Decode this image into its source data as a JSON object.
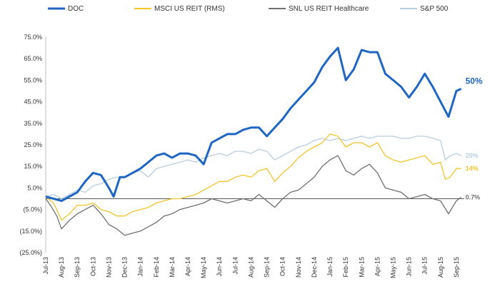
{
  "chart_data": {
    "type": "line",
    "title": "",
    "xlabel": "",
    "ylabel": "",
    "ylim": [
      -25,
      75
    ],
    "yticks": [
      75,
      65,
      55,
      45,
      35,
      25,
      15,
      5,
      -5,
      -15,
      -25
    ],
    "ytick_labels": [
      "75.0%",
      "65.0%",
      "55.0%",
      "45.0%",
      "35.0%",
      "25.0%",
      "15.0%",
      "5.0%",
      "(5.0%)",
      "(15.0%)",
      "(25.0%)"
    ],
    "xtick_labels": [
      "Jul-13",
      "Aug-13",
      "Sep-13",
      "Oct-13",
      "Nov-13",
      "Dec-13",
      "Jan-14",
      "Feb-14",
      "Mar-14",
      "Apr-14",
      "May-14",
      "Jun-14",
      "Jul-14",
      "Aug-14",
      "Sep-14",
      "Oct-14",
      "Nov-14",
      "Dec-14",
      "Jan-15",
      "Feb-15",
      "Mar-15",
      "Apr-15",
      "May-15",
      "Jun-15",
      "Jul-15",
      "Aug-15",
      "Sep-15"
    ],
    "x_domain": [
      0,
      26.5
    ],
    "grid": false,
    "zero_line": true,
    "legend_position": "top",
    "series": [
      {
        "name": "DOC",
        "color": "#1f66c2",
        "end_label": "50%",
        "points": [
          [
            0,
            1
          ],
          [
            0.5,
            0
          ],
          [
            1,
            -1
          ],
          [
            1.5,
            1
          ],
          [
            2,
            3
          ],
          [
            2.5,
            8
          ],
          [
            3,
            12
          ],
          [
            3.5,
            11
          ],
          [
            4,
            5
          ],
          [
            4.3,
            1
          ],
          [
            4.7,
            10
          ],
          [
            5,
            10
          ],
          [
            5.5,
            12
          ],
          [
            6,
            14
          ],
          [
            6.5,
            17
          ],
          [
            7,
            20
          ],
          [
            7.5,
            21
          ],
          [
            8,
            19
          ],
          [
            8.5,
            21
          ],
          [
            9,
            21
          ],
          [
            9.5,
            20
          ],
          [
            10,
            16
          ],
          [
            10.5,
            26
          ],
          [
            11,
            28
          ],
          [
            11.5,
            30
          ],
          [
            12,
            30
          ],
          [
            12.5,
            32
          ],
          [
            13,
            33
          ],
          [
            13.5,
            33
          ],
          [
            14,
            29
          ],
          [
            14.5,
            33
          ],
          [
            15,
            37
          ],
          [
            15.5,
            42
          ],
          [
            16,
            46
          ],
          [
            16.5,
            50
          ],
          [
            17,
            54
          ],
          [
            17.5,
            61
          ],
          [
            18,
            66
          ],
          [
            18.5,
            70
          ],
          [
            19,
            55
          ],
          [
            19.5,
            60
          ],
          [
            20,
            69
          ],
          [
            20.5,
            68
          ],
          [
            21,
            68
          ],
          [
            21.5,
            58
          ],
          [
            22,
            55
          ],
          [
            22.5,
            52
          ],
          [
            23,
            47
          ],
          [
            23.5,
            52
          ],
          [
            24,
            58
          ],
          [
            24.5,
            52
          ],
          [
            25,
            45
          ],
          [
            25.5,
            38
          ],
          [
            26,
            50
          ],
          [
            26.3,
            51
          ]
        ]
      },
      {
        "name": "MSCI US REIT (RMS)",
        "color": "#f2c42e",
        "end_label": "14%",
        "points": [
          [
            0,
            1
          ],
          [
            0.5,
            -2
          ],
          [
            1,
            -10
          ],
          [
            1.5,
            -7
          ],
          [
            2,
            -3
          ],
          [
            2.5,
            -3
          ],
          [
            3,
            -2
          ],
          [
            3.5,
            -5
          ],
          [
            4,
            -6
          ],
          [
            4.5,
            -8
          ],
          [
            5,
            -8
          ],
          [
            5.5,
            -6
          ],
          [
            6,
            -5
          ],
          [
            6.5,
            -4
          ],
          [
            7,
            -2
          ],
          [
            7.5,
            -1
          ],
          [
            8,
            0
          ],
          [
            8.5,
            0
          ],
          [
            9,
            1
          ],
          [
            9.5,
            2
          ],
          [
            10,
            4
          ],
          [
            10.5,
            6
          ],
          [
            11,
            8
          ],
          [
            11.5,
            8
          ],
          [
            12,
            10
          ],
          [
            12.5,
            11
          ],
          [
            13,
            10
          ],
          [
            13.5,
            13
          ],
          [
            14,
            14
          ],
          [
            14.5,
            8
          ],
          [
            15,
            12
          ],
          [
            15.5,
            15
          ],
          [
            16,
            19
          ],
          [
            16.5,
            22
          ],
          [
            17,
            24
          ],
          [
            17.5,
            26
          ],
          [
            18,
            30
          ],
          [
            18.5,
            29
          ],
          [
            19,
            24
          ],
          [
            19.5,
            26
          ],
          [
            20,
            26
          ],
          [
            20.5,
            24
          ],
          [
            21,
            26
          ],
          [
            21.5,
            20
          ],
          [
            22,
            18
          ],
          [
            22.5,
            17
          ],
          [
            23,
            18
          ],
          [
            23.5,
            19
          ],
          [
            24,
            20
          ],
          [
            24.5,
            16
          ],
          [
            25,
            17
          ],
          [
            25.3,
            9
          ],
          [
            25.6,
            10
          ],
          [
            26,
            14
          ],
          [
            26.3,
            14
          ]
        ]
      },
      {
        "name": "SNL US REIT Healthcare",
        "color": "#6f6f6f",
        "end_label": "0.7%",
        "points": [
          [
            0,
            0
          ],
          [
            0.3,
            -3
          ],
          [
            0.7,
            -8
          ],
          [
            1,
            -14
          ],
          [
            1.5,
            -10
          ],
          [
            2,
            -7
          ],
          [
            2.5,
            -5
          ],
          [
            3,
            -3
          ],
          [
            3.5,
            -7
          ],
          [
            4,
            -12
          ],
          [
            4.5,
            -14
          ],
          [
            5,
            -17
          ],
          [
            5.5,
            -16
          ],
          [
            6,
            -15
          ],
          [
            6.5,
            -13
          ],
          [
            7,
            -11
          ],
          [
            7.5,
            -8
          ],
          [
            8,
            -7
          ],
          [
            8.5,
            -5
          ],
          [
            9,
            -4
          ],
          [
            9.5,
            -3
          ],
          [
            10,
            -2
          ],
          [
            10.5,
            0
          ],
          [
            11,
            -1
          ],
          [
            11.5,
            -2
          ],
          [
            12,
            -1
          ],
          [
            12.5,
            0
          ],
          [
            13,
            -1
          ],
          [
            13.5,
            2
          ],
          [
            14,
            -1
          ],
          [
            14.5,
            -4
          ],
          [
            15,
            0
          ],
          [
            15.5,
            3
          ],
          [
            16,
            4
          ],
          [
            16.5,
            7
          ],
          [
            17,
            10
          ],
          [
            17.5,
            15
          ],
          [
            18,
            18
          ],
          [
            18.5,
            20
          ],
          [
            19,
            13
          ],
          [
            19.5,
            11
          ],
          [
            20,
            14
          ],
          [
            20.5,
            16
          ],
          [
            21,
            12
          ],
          [
            21.5,
            5
          ],
          [
            22,
            4
          ],
          [
            22.5,
            3
          ],
          [
            23,
            0
          ],
          [
            23.5,
            1
          ],
          [
            24,
            2
          ],
          [
            24.5,
            0
          ],
          [
            25,
            -1
          ],
          [
            25.5,
            -7
          ],
          [
            26,
            -1
          ],
          [
            26.3,
            0.7
          ]
        ]
      },
      {
        "name": "S&P 500",
        "color": "#b9cde0",
        "end_label": "20%",
        "points": [
          [
            0,
            1
          ],
          [
            0.5,
            2
          ],
          [
            1,
            0
          ],
          [
            1.5,
            2
          ],
          [
            2,
            4
          ],
          [
            2.5,
            3
          ],
          [
            3,
            6
          ],
          [
            3.5,
            7
          ],
          [
            4,
            9
          ],
          [
            4.5,
            10
          ],
          [
            5,
            10
          ],
          [
            5.5,
            12
          ],
          [
            6,
            13
          ],
          [
            6.5,
            10
          ],
          [
            7,
            14
          ],
          [
            7.5,
            15
          ],
          [
            8,
            16
          ],
          [
            8.5,
            17
          ],
          [
            9,
            18
          ],
          [
            9.5,
            17
          ],
          [
            10,
            19
          ],
          [
            10.5,
            20
          ],
          [
            11,
            21
          ],
          [
            11.5,
            20
          ],
          [
            12,
            22
          ],
          [
            12.5,
            22
          ],
          [
            13,
            21
          ],
          [
            13.5,
            23
          ],
          [
            14,
            22
          ],
          [
            14.5,
            18
          ],
          [
            15,
            20
          ],
          [
            15.5,
            22
          ],
          [
            16,
            24
          ],
          [
            16.5,
            25
          ],
          [
            17,
            27
          ],
          [
            17.5,
            28
          ],
          [
            18,
            27
          ],
          [
            18.5,
            28
          ],
          [
            19,
            27
          ],
          [
            19.5,
            28
          ],
          [
            20,
            29
          ],
          [
            20.5,
            28
          ],
          [
            21,
            29
          ],
          [
            21.5,
            29
          ],
          [
            22,
            29
          ],
          [
            22.5,
            28
          ],
          [
            23,
            28
          ],
          [
            23.5,
            29
          ],
          [
            24,
            29
          ],
          [
            24.5,
            28
          ],
          [
            25,
            27
          ],
          [
            25.3,
            18
          ],
          [
            25.6,
            20
          ],
          [
            26,
            21
          ],
          [
            26.3,
            20
          ]
        ]
      }
    ]
  }
}
